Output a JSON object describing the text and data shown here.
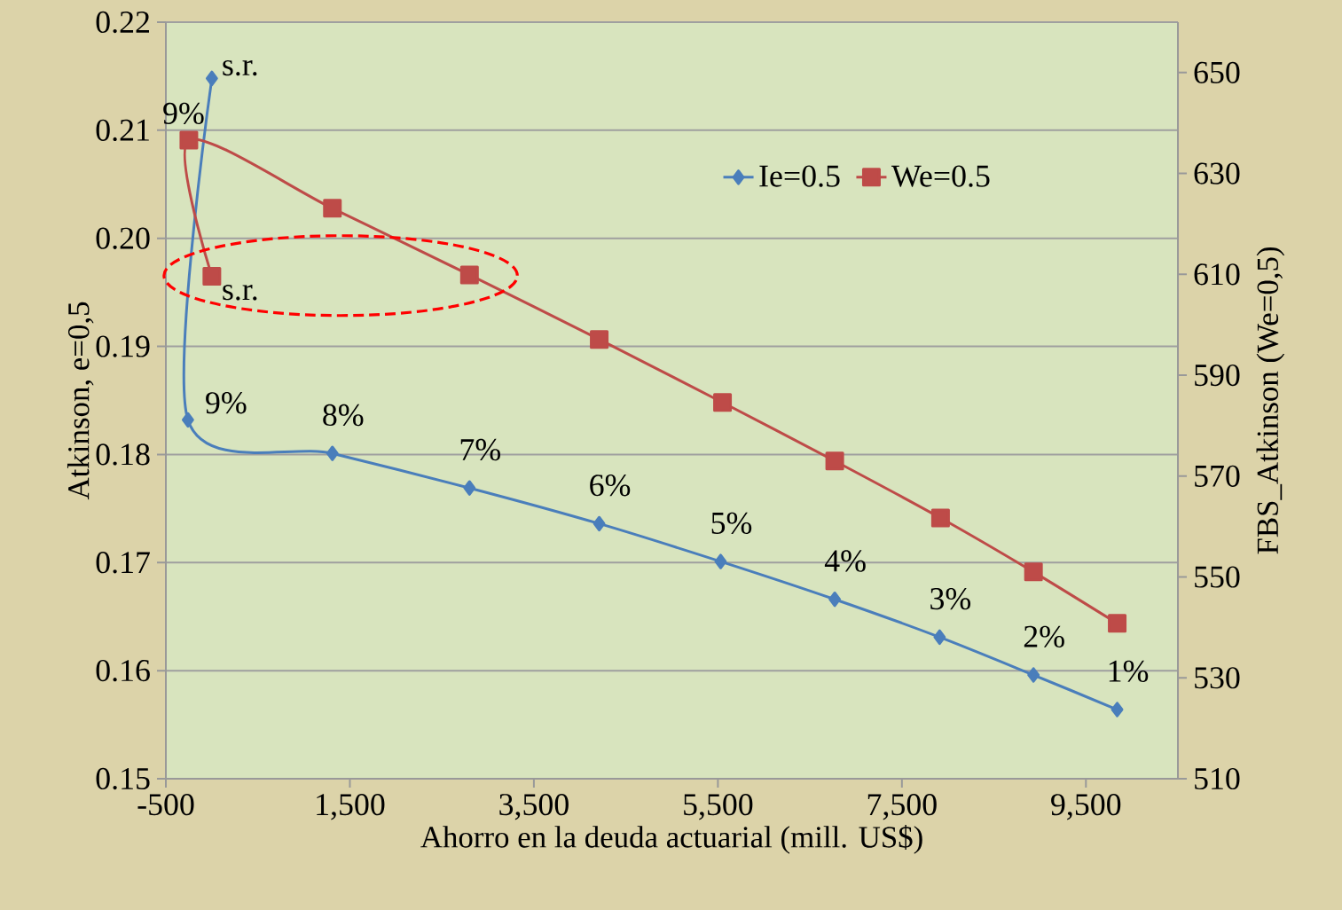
{
  "chart_data": {
    "type": "line",
    "xlabel": "Ahorro en la deuda actuarial (mill. US$)",
    "ylabel": "Atkinson, e=0,5",
    "y2label": "FBS_Atkinson (We=0,5)",
    "xlim": [
      -500,
      10500
    ],
    "xticks": [
      -500,
      {
        "value": 1500,
        "label": "1,500"
      },
      {
        "value": 3500,
        "label": "3,500"
      },
      {
        "value": 5500,
        "label": "5,500"
      },
      {
        "value": 7500,
        "label": "7,500"
      },
      {
        "value": 9500,
        "label": "9,500"
      }
    ],
    "ylim": [
      0.15,
      0.22
    ],
    "yticks": [
      0.15,
      0.16,
      0.17,
      0.18,
      0.19,
      {
        "value": 0.2,
        "label": "0.20"
      },
      0.21,
      0.22
    ],
    "y2lim": [
      510,
      660
    ],
    "y2ticks": [
      510,
      530,
      550,
      570,
      590,
      610,
      630,
      650
    ],
    "grid": "y",
    "legend": "top right",
    "line_style": "solid",
    "series": [
      {
        "name": "Ie=0.5",
        "color": "#4a7ebb",
        "marker": "diamond",
        "x": [
          0,
          -260,
          1310,
          2800,
          4210,
          5530,
          6770,
          7910,
          8930,
          9840
        ],
        "values": [
          0.2148,
          0.1832,
          0.1801,
          0.1769,
          0.1736,
          0.1701,
          0.1666,
          0.1631,
          0.1596,
          0.1564
        ]
      },
      {
        "name": "We=0.5",
        "color": "#be4b48",
        "marker": "square",
        "axis": "y2",
        "x": [
          0,
          -250,
          1310,
          2800,
          4210,
          5550,
          6770,
          7920,
          8930,
          9840
        ],
        "values": [
          609.6,
          636.6,
          623.1,
          609.9,
          597.1,
          584.6,
          573.0,
          561.7,
          551.0,
          540.8
        ]
      }
    ],
    "annotations": [
      {
        "text": "s.r.",
        "x": 0,
        "y": 0.2148
      },
      {
        "text": "9%",
        "x": -260,
        "y": 0.1832
      },
      {
        "text": "s.r.",
        "x": 0,
        "y": 0.1963
      },
      {
        "text": "9%",
        "x": -250,
        "y": 0.209
      },
      {
        "text": "8%",
        "x": 1310,
        "y": 0.1801
      },
      {
        "text": "7%",
        "x": 2800,
        "y": 0.1769
      },
      {
        "text": "6%",
        "x": 4210,
        "y": 0.1736
      },
      {
        "text": "5%",
        "x": 5530,
        "y": 0.1701
      },
      {
        "text": "4%",
        "x": 6770,
        "y": 0.1666
      },
      {
        "text": "3%",
        "x": 7910,
        "y": 0.1631
      },
      {
        "text": "2%",
        "x": 8930,
        "y": 0.1596
      },
      {
        "text": "1%",
        "x": 9840,
        "y": 0.1564
      }
    ]
  }
}
